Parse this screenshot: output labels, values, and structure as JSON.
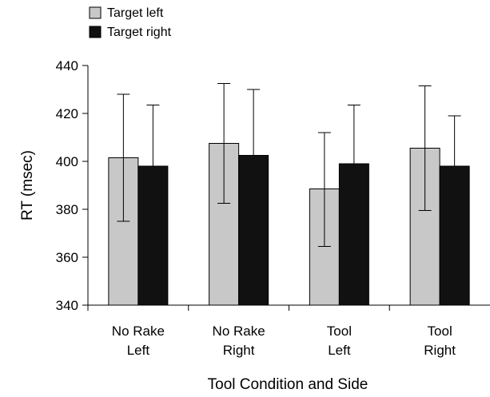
{
  "chart_data": {
    "type": "bar",
    "title": "",
    "xlabel": "Tool Condition and Side",
    "ylabel": "RT (msec)",
    "ylim": [
      340,
      440
    ],
    "yticks": [
      340,
      360,
      380,
      400,
      420,
      440
    ],
    "categories": [
      [
        "No Rake",
        "Left"
      ],
      [
        "No Rake",
        "Right"
      ],
      [
        "Tool",
        "Left"
      ],
      [
        "Tool",
        "Right"
      ]
    ],
    "series": [
      {
        "name": "Target left",
        "color": "#c8c8c8",
        "values": [
          401.5,
          407.5,
          388.5,
          405.5
        ],
        "error_upper": [
          428,
          432.5,
          412,
          431.5
        ],
        "error_lower": [
          375,
          382.5,
          364.5,
          379.5
        ]
      },
      {
        "name": "Target right",
        "color": "#111111",
        "values": [
          398,
          402.5,
          399,
          398
        ],
        "error_upper": [
          423.5,
          430,
          423.5,
          419
        ],
        "error_lower": [
          398,
          402.5,
          399,
          398
        ]
      }
    ],
    "legend": "top-left",
    "grid": false
  }
}
